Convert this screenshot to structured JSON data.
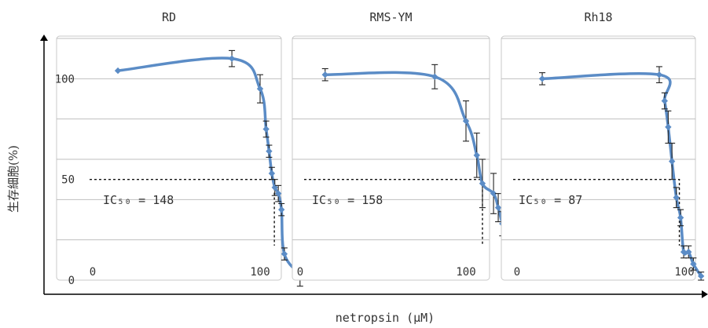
{
  "figure": {
    "ylabel": "生存細胞(%)",
    "xlabel": "netropsin (μM)",
    "y_ticks": [
      "0",
      "50",
      "100"
    ]
  },
  "colors": {
    "curve": "#5b8cc6",
    "grid": "#bfbfbf",
    "error_bar": "#222222"
  },
  "chart_data": [
    {
      "type": "line",
      "title": "RD",
      "xscale": "log",
      "x_ticks": [
        "0",
        "100",
        "1000"
      ],
      "ylim": [
        0,
        120
      ],
      "grid": true,
      "ic50_label": "IC₅₀ = 148",
      "ic50": 148,
      "series": [
        {
          "x": [
            2,
            46,
            100,
            118,
            128,
            138,
            150,
            165,
            180,
            195,
            300
          ],
          "y": [
            104,
            110,
            95,
            75,
            64,
            53,
            46,
            43,
            35,
            13,
            3
          ],
          "err": [
            0,
            4,
            7,
            4,
            3,
            3,
            4,
            4,
            3,
            3,
            6
          ]
        }
      ]
    },
    {
      "type": "line",
      "title": "RMS-YM",
      "xscale": "log",
      "x_ticks": [
        "0",
        "100",
        "1000"
      ],
      "ylim": [
        0,
        120
      ],
      "grid": true,
      "ic50_label": "IC₅₀ = 158",
      "ic50": 158,
      "series": [
        {
          "x": [
            2,
            42,
            100,
            135,
            158,
            215,
            245,
            275,
            325,
            430,
            560
          ],
          "y": [
            102,
            101,
            79,
            62,
            48,
            43,
            36,
            28,
            20,
            4,
            4
          ],
          "err": [
            3,
            6,
            10,
            11,
            12,
            10,
            7,
            6,
            9,
            2,
            3
          ]
        }
      ]
    },
    {
      "type": "line",
      "title": "Rh18",
      "xscale": "log",
      "x_ticks": [
        "0",
        "100",
        "1000"
      ],
      "ylim": [
        0,
        120
      ],
      "grid": true,
      "ic50_label": "IC₅₀ = 87",
      "ic50": 87,
      "series": [
        {
          "x": [
            2,
            50,
            58,
            64,
            71,
            80,
            90,
            98,
            112,
            128,
            158
          ],
          "y": [
            100,
            102,
            89,
            76,
            59,
            41,
            31,
            14,
            14,
            8,
            2
          ],
          "err": [
            3,
            4,
            4,
            8,
            9,
            5,
            4,
            3,
            3,
            3,
            2
          ]
        }
      ]
    }
  ]
}
